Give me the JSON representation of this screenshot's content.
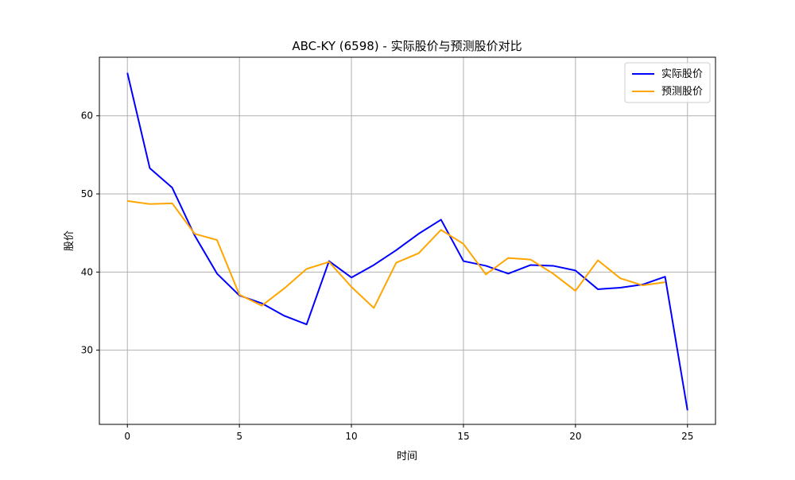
{
  "chart_data": {
    "type": "line",
    "title": "ABC-KY (6598) - 实际股价与预测股价对比",
    "xlabel": "时间",
    "ylabel": "股价",
    "xlim": [
      -1.25,
      26.25
    ],
    "ylim": [
      20.5,
      67.5
    ],
    "xticks": [
      0,
      5,
      10,
      15,
      20,
      25
    ],
    "yticks": [
      30,
      40,
      50,
      60
    ],
    "grid": true,
    "legend_position": "top-right",
    "series": [
      {
        "name": "实际股价",
        "color": "#0000ff",
        "x": [
          0,
          1,
          2,
          3,
          4,
          5,
          6,
          7,
          8,
          9,
          10,
          11,
          12,
          13,
          14,
          15,
          16,
          17,
          18,
          19,
          20,
          21,
          22,
          23,
          24,
          25
        ],
        "values": [
          65.5,
          53.3,
          50.8,
          44.7,
          39.8,
          37.0,
          36.0,
          34.4,
          33.3,
          41.4,
          39.3,
          40.9,
          42.8,
          44.9,
          46.7,
          41.4,
          40.8,
          39.8,
          40.9,
          40.8,
          40.2,
          37.8,
          38.0,
          38.4,
          39.4,
          22.3
        ]
      },
      {
        "name": "预测股价",
        "color": "#ffa500",
        "x": [
          0,
          1,
          2,
          3,
          4,
          5,
          6,
          7,
          8,
          9,
          10,
          11,
          12,
          13,
          14,
          15,
          16,
          17,
          18,
          19,
          20,
          21,
          22,
          23,
          24
        ],
        "values": [
          49.1,
          48.7,
          48.8,
          44.9,
          44.1,
          37.1,
          35.7,
          37.9,
          40.4,
          41.3,
          38.1,
          35.4,
          41.2,
          42.4,
          45.4,
          43.6,
          39.7,
          41.8,
          41.6,
          39.8,
          37.6,
          41.5,
          39.2,
          38.3,
          38.7
        ]
      }
    ]
  }
}
